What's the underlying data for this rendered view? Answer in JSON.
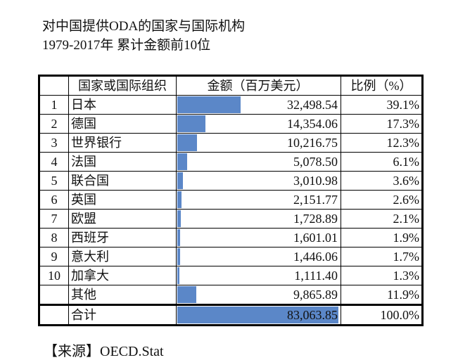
{
  "title_line1": "对中国提供ODA的国家与国际机构",
  "title_line2": "1979-2017年 累计金额前10位",
  "bar_color": "#5b87c8",
  "table": {
    "headers": [
      "",
      "国家或国际组织",
      "金额（百万美元）",
      "比例（%）"
    ],
    "rows": [
      {
        "rank": "1",
        "name": "日本",
        "amount": "32,498.54",
        "value": 32498.54,
        "share": "39.1%"
      },
      {
        "rank": "2",
        "name": "德国",
        "amount": "14,354.06",
        "value": 14354.06,
        "share": "17.3%"
      },
      {
        "rank": "3",
        "name": "世界银行",
        "amount": "10,216.75",
        "value": 10216.75,
        "share": "12.3%"
      },
      {
        "rank": "4",
        "name": "法国",
        "amount": "5,078.50",
        "value": 5078.5,
        "share": "6.1%"
      },
      {
        "rank": "5",
        "name": "联合国",
        "amount": "3,010.98",
        "value": 3010.98,
        "share": "3.6%"
      },
      {
        "rank": "6",
        "name": "英国",
        "amount": "2,151.77",
        "value": 2151.77,
        "share": "2.6%"
      },
      {
        "rank": "7",
        "name": "欧盟",
        "amount": "1,728.89",
        "value": 1728.89,
        "share": "2.1%"
      },
      {
        "rank": "8",
        "name": "西班牙",
        "amount": "1,601.01",
        "value": 1601.01,
        "share": "1.9%"
      },
      {
        "rank": "9",
        "name": "意大利",
        "amount": "1,446.06",
        "value": 1446.06,
        "share": "1.7%"
      },
      {
        "rank": "10",
        "name": "加拿大",
        "amount": "1,111.40",
        "value": 1111.4,
        "share": "1.3%"
      },
      {
        "rank": "",
        "name": "其他",
        "amount": "9,865.89",
        "value": 9865.89,
        "share": "11.9%"
      }
    ],
    "total": {
      "rank": "",
      "name": "合计",
      "amount": "83,063.85",
      "value": 83063.85,
      "share": "100.0%"
    }
  },
  "source": "【来源】OECD.Stat"
}
